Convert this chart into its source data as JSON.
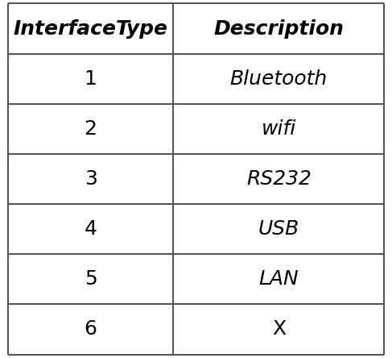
{
  "headers": [
    "InterfaceType",
    "Description"
  ],
  "rows": [
    [
      "1",
      "Bluetooth"
    ],
    [
      "2",
      "wifi"
    ],
    [
      "3",
      "RS232"
    ],
    [
      "4",
      "USB"
    ],
    [
      "5",
      "LAN"
    ],
    [
      "6",
      "X"
    ]
  ],
  "header_fontsize": 18,
  "cell_fontsize": 18,
  "background_color": "#ffffff",
  "line_color": "#555555",
  "text_color": "#000000",
  "col_split": 0.44,
  "fig_width": 4.87,
  "fig_height": 4.44
}
